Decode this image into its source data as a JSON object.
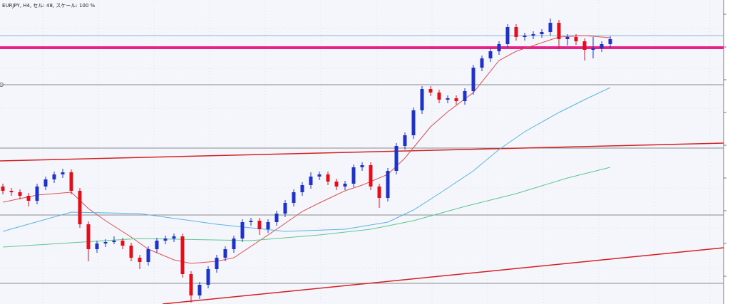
{
  "chart_data": {
    "type": "candlestick",
    "title": "EURJPY, H4, セル: 48, スケール: 100 %",
    "ylim": [
      146.27,
      150.54
    ],
    "up_color": "#1e32c8",
    "down_color": "#e0101a",
    "open": [
      147.92,
      147.86,
      147.84,
      147.79,
      147.72,
      147.92,
      148.02,
      148.09,
      148.12,
      147.86,
      147.39,
      147.04,
      147.12,
      147.14,
      147.16,
      147.09,
      146.92,
      146.86,
      147.04,
      147.16,
      147.19,
      147.22,
      146.69,
      146.39,
      146.54,
      146.76,
      146.92,
      147.04,
      147.19,
      147.42,
      147.44,
      147.32,
      147.42,
      147.54,
      147.69,
      147.84,
      147.94,
      148.06,
      148.09,
      147.99,
      147.92,
      147.96,
      148.19,
      148.22,
      147.92,
      147.76,
      148.14,
      148.49,
      148.64,
      148.99,
      149.29,
      149.24,
      149.14,
      149.16,
      149.12,
      149.26,
      149.59,
      149.72,
      149.82,
      149.92,
      150.16,
      150.02,
      150.04,
      150.06,
      150.09,
      150.22,
      149.99,
      150.02,
      149.96,
      149.84,
      149.86,
      149.92
    ],
    "high": [
      147.96,
      147.9,
      147.88,
      147.83,
      147.96,
      148.06,
      148.13,
      148.17,
      148.16,
      147.9,
      147.43,
      147.16,
      147.18,
      147.22,
      147.2,
      147.13,
      146.96,
      147.08,
      147.2,
      147.23,
      147.26,
      147.26,
      146.73,
      146.58,
      146.8,
      146.96,
      147.08,
      147.23,
      147.46,
      147.48,
      147.48,
      147.46,
      147.58,
      147.73,
      147.88,
      147.98,
      148.12,
      148.13,
      148.13,
      148.03,
      148.0,
      148.23,
      148.26,
      148.26,
      147.96,
      148.18,
      148.53,
      148.68,
      149.03,
      149.33,
      149.33,
      149.28,
      149.2,
      149.2,
      149.3,
      149.63,
      149.76,
      149.86,
      149.96,
      150.2,
      150.2,
      150.08,
      150.1,
      150.13,
      150.28,
      150.26,
      150.06,
      150.06,
      150.0,
      150.02,
      149.96,
      150.03
    ],
    "low": [
      147.81,
      147.79,
      147.74,
      147.64,
      147.67,
      147.87,
      147.97,
      148.04,
      147.81,
      147.34,
      146.87,
      146.99,
      147.07,
      147.11,
      147.04,
      146.87,
      146.76,
      146.81,
      146.99,
      147.11,
      147.14,
      146.64,
      146.29,
      146.34,
      146.49,
      146.71,
      146.87,
      146.99,
      147.14,
      147.37,
      147.24,
      147.27,
      147.37,
      147.49,
      147.64,
      147.79,
      147.89,
      148.01,
      147.94,
      147.87,
      147.87,
      147.91,
      148.14,
      147.87,
      147.62,
      147.71,
      148.09,
      148.44,
      148.59,
      148.94,
      149.19,
      149.09,
      149.09,
      149.07,
      149.07,
      149.21,
      149.54,
      149.67,
      149.77,
      149.87,
      149.97,
      149.97,
      149.99,
      150.01,
      150.04,
      149.85,
      149.9,
      149.91,
      149.69,
      149.72,
      149.81,
      149.87
    ],
    "close": [
      147.86,
      147.84,
      147.79,
      147.72,
      147.92,
      148.02,
      148.09,
      148.12,
      147.86,
      147.39,
      147.04,
      147.12,
      147.14,
      147.16,
      147.09,
      146.92,
      146.86,
      147.04,
      147.16,
      147.19,
      147.22,
      146.69,
      146.39,
      146.54,
      146.76,
      146.92,
      147.04,
      147.19,
      147.42,
      147.44,
      147.32,
      147.42,
      147.54,
      147.69,
      147.84,
      147.94,
      148.06,
      148.09,
      147.99,
      147.92,
      147.96,
      148.19,
      148.22,
      147.92,
      147.76,
      148.14,
      148.49,
      148.64,
      148.99,
      149.29,
      149.24,
      149.14,
      149.16,
      149.12,
      149.26,
      149.59,
      149.72,
      149.82,
      149.92,
      150.16,
      150.02,
      150.04,
      150.06,
      150.09,
      150.22,
      149.99,
      150.02,
      149.96,
      149.84,
      149.86,
      149.92,
      149.99
    ],
    "lines": [
      {
        "color": "#e05050",
        "x": [
          0,
          4,
          8,
          10,
          12,
          15,
          17,
          20,
          22,
          25,
          27,
          30,
          32,
          35,
          37,
          40,
          42,
          45,
          47,
          50,
          52,
          55,
          58,
          60,
          62,
          65,
          68,
          71
        ],
        "values": [
          147.7,
          147.8,
          147.84,
          147.61,
          147.44,
          147.21,
          147.04,
          146.89,
          146.84,
          146.87,
          146.92,
          147.16,
          147.32,
          147.57,
          147.69,
          147.86,
          147.94,
          148.09,
          148.32,
          148.76,
          148.97,
          149.24,
          149.69,
          149.82,
          149.9,
          150.02,
          150.04,
          150.01
        ]
      },
      {
        "color": "#5ab4e0",
        "x": [
          0,
          8,
          16,
          25,
          33,
          40,
          45,
          48,
          51,
          55,
          58,
          61,
          65,
          68,
          71
        ],
        "values": [
          147.29,
          147.56,
          147.54,
          147.39,
          147.29,
          147.32,
          147.42,
          147.59,
          147.82,
          148.14,
          148.44,
          148.69,
          148.96,
          149.14,
          149.31
        ]
      },
      {
        "color": "#5cc88c",
        "x": [
          0,
          16,
          29,
          37,
          43,
          48,
          54,
          60,
          66,
          71
        ],
        "values": [
          147.07,
          147.19,
          147.16,
          147.24,
          147.32,
          147.44,
          147.64,
          147.82,
          148.04,
          148.19
        ]
      }
    ],
    "levels": [
      {
        "value": 150.04,
        "color": "#8fb4cc",
        "width": 1
      },
      {
        "value": 149.87,
        "color": "#e8208c",
        "width": 4
      },
      {
        "value": 149.35,
        "color": "#8a8a8a",
        "width": 1
      },
      {
        "value": 148.46,
        "color": "#8a8a8a",
        "width": 1
      },
      {
        "value": 147.52,
        "color": "#8a8a8a",
        "width": 1
      },
      {
        "value": 146.56,
        "color": "#8a8a8a",
        "width": 1
      }
    ],
    "trendlines": [
      {
        "x": [
          -0.33,
          84.25
        ],
        "values": [
          148.28,
          148.53
        ],
        "color": "#d42020"
      },
      {
        "x": [
          18.67,
          84.25
        ],
        "values": [
          146.27,
          147.06
        ],
        "color": "#d42020"
      }
    ]
  }
}
